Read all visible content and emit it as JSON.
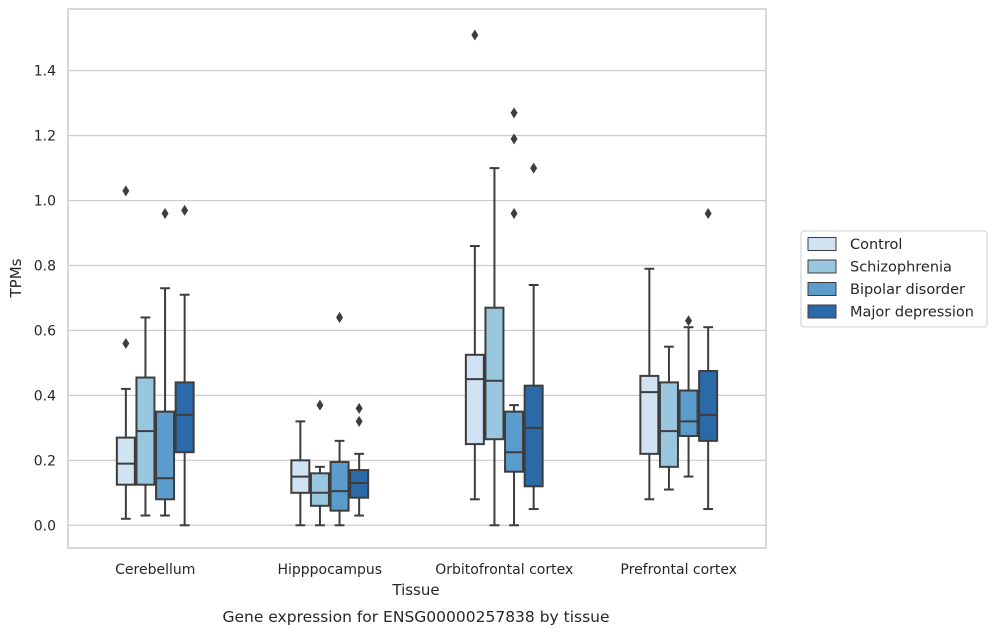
{
  "chart_data": {
    "type": "box",
    "caption": "Gene expression for ENSG00000257838 by tissue",
    "xlabel": "Tissue",
    "ylabel": "TPMs",
    "ylim": [
      -0.07,
      1.59
    ],
    "yticks": [
      0.0,
      0.2,
      0.4,
      0.6,
      0.8,
      1.0,
      1.2,
      1.4
    ],
    "ytick_labels": [
      "0.0",
      "0.2",
      "0.4",
      "0.6",
      "0.8",
      "1.0",
      "1.2",
      "1.4"
    ],
    "grid": "horizontal",
    "legend_position": "right",
    "categories": [
      "Cerebellum",
      "Hipppocampus",
      "Orbitofrontal cortex",
      "Prefrontal cortex"
    ],
    "series": [
      {
        "name": "Control",
        "color": "#d1e2f3",
        "boxes": [
          {
            "whislo": 0.02,
            "q1": 0.125,
            "med": 0.19,
            "q3": 0.27,
            "whishi": 0.42,
            "fliers": [
              0.56,
              1.03
            ]
          },
          {
            "whislo": 0.0,
            "q1": 0.1,
            "med": 0.15,
            "q3": 0.2,
            "whishi": 0.32,
            "fliers": []
          },
          {
            "whislo": 0.08,
            "q1": 0.25,
            "med": 0.45,
            "q3": 0.525,
            "whishi": 0.86,
            "fliers": [
              1.51
            ]
          },
          {
            "whislo": 0.08,
            "q1": 0.22,
            "med": 0.41,
            "q3": 0.46,
            "whishi": 0.79,
            "fliers": []
          }
        ]
      },
      {
        "name": "Schizophrenia",
        "color": "#9ac7e0",
        "boxes": [
          {
            "whislo": 0.03,
            "q1": 0.125,
            "med": 0.29,
            "q3": 0.455,
            "whishi": 0.64,
            "fliers": []
          },
          {
            "whislo": 0.0,
            "q1": 0.06,
            "med": 0.1,
            "q3": 0.16,
            "whishi": 0.18,
            "fliers": [
              0.37
            ]
          },
          {
            "whislo": 0.0,
            "q1": 0.265,
            "med": 0.445,
            "q3": 0.67,
            "whishi": 1.1,
            "fliers": []
          },
          {
            "whislo": 0.11,
            "q1": 0.18,
            "med": 0.29,
            "q3": 0.44,
            "whishi": 0.55,
            "fliers": []
          }
        ]
      },
      {
        "name": "Bipolar disorder",
        "color": "#5a9ccc",
        "boxes": [
          {
            "whislo": 0.03,
            "q1": 0.08,
            "med": 0.145,
            "q3": 0.35,
            "whishi": 0.73,
            "fliers": [
              0.96
            ]
          },
          {
            "whislo": 0.0,
            "q1": 0.045,
            "med": 0.105,
            "q3": 0.195,
            "whishi": 0.26,
            "fliers": [
              0.64
            ]
          },
          {
            "whislo": 0.0,
            "q1": 0.165,
            "med": 0.225,
            "q3": 0.35,
            "whishi": 0.37,
            "fliers": [
              0.96,
              1.19,
              1.27
            ]
          },
          {
            "whislo": 0.15,
            "q1": 0.275,
            "med": 0.32,
            "q3": 0.415,
            "whishi": 0.61,
            "fliers": [
              0.63
            ]
          }
        ]
      },
      {
        "name": "Major depression",
        "color": "#2a6aa9",
        "boxes": [
          {
            "whislo": 0.0,
            "q1": 0.225,
            "med": 0.34,
            "q3": 0.44,
            "whishi": 0.71,
            "fliers": [
              0.97
            ]
          },
          {
            "whislo": 0.03,
            "q1": 0.085,
            "med": 0.13,
            "q3": 0.17,
            "whishi": 0.22,
            "fliers": [
              0.32,
              0.36
            ]
          },
          {
            "whislo": 0.05,
            "q1": 0.12,
            "med": 0.3,
            "q3": 0.43,
            "whishi": 0.74,
            "fliers": [
              1.1
            ]
          },
          {
            "whislo": 0.05,
            "q1": 0.26,
            "med": 0.34,
            "q3": 0.475,
            "whishi": 0.61,
            "fliers": [
              0.96
            ]
          }
        ]
      }
    ]
  }
}
